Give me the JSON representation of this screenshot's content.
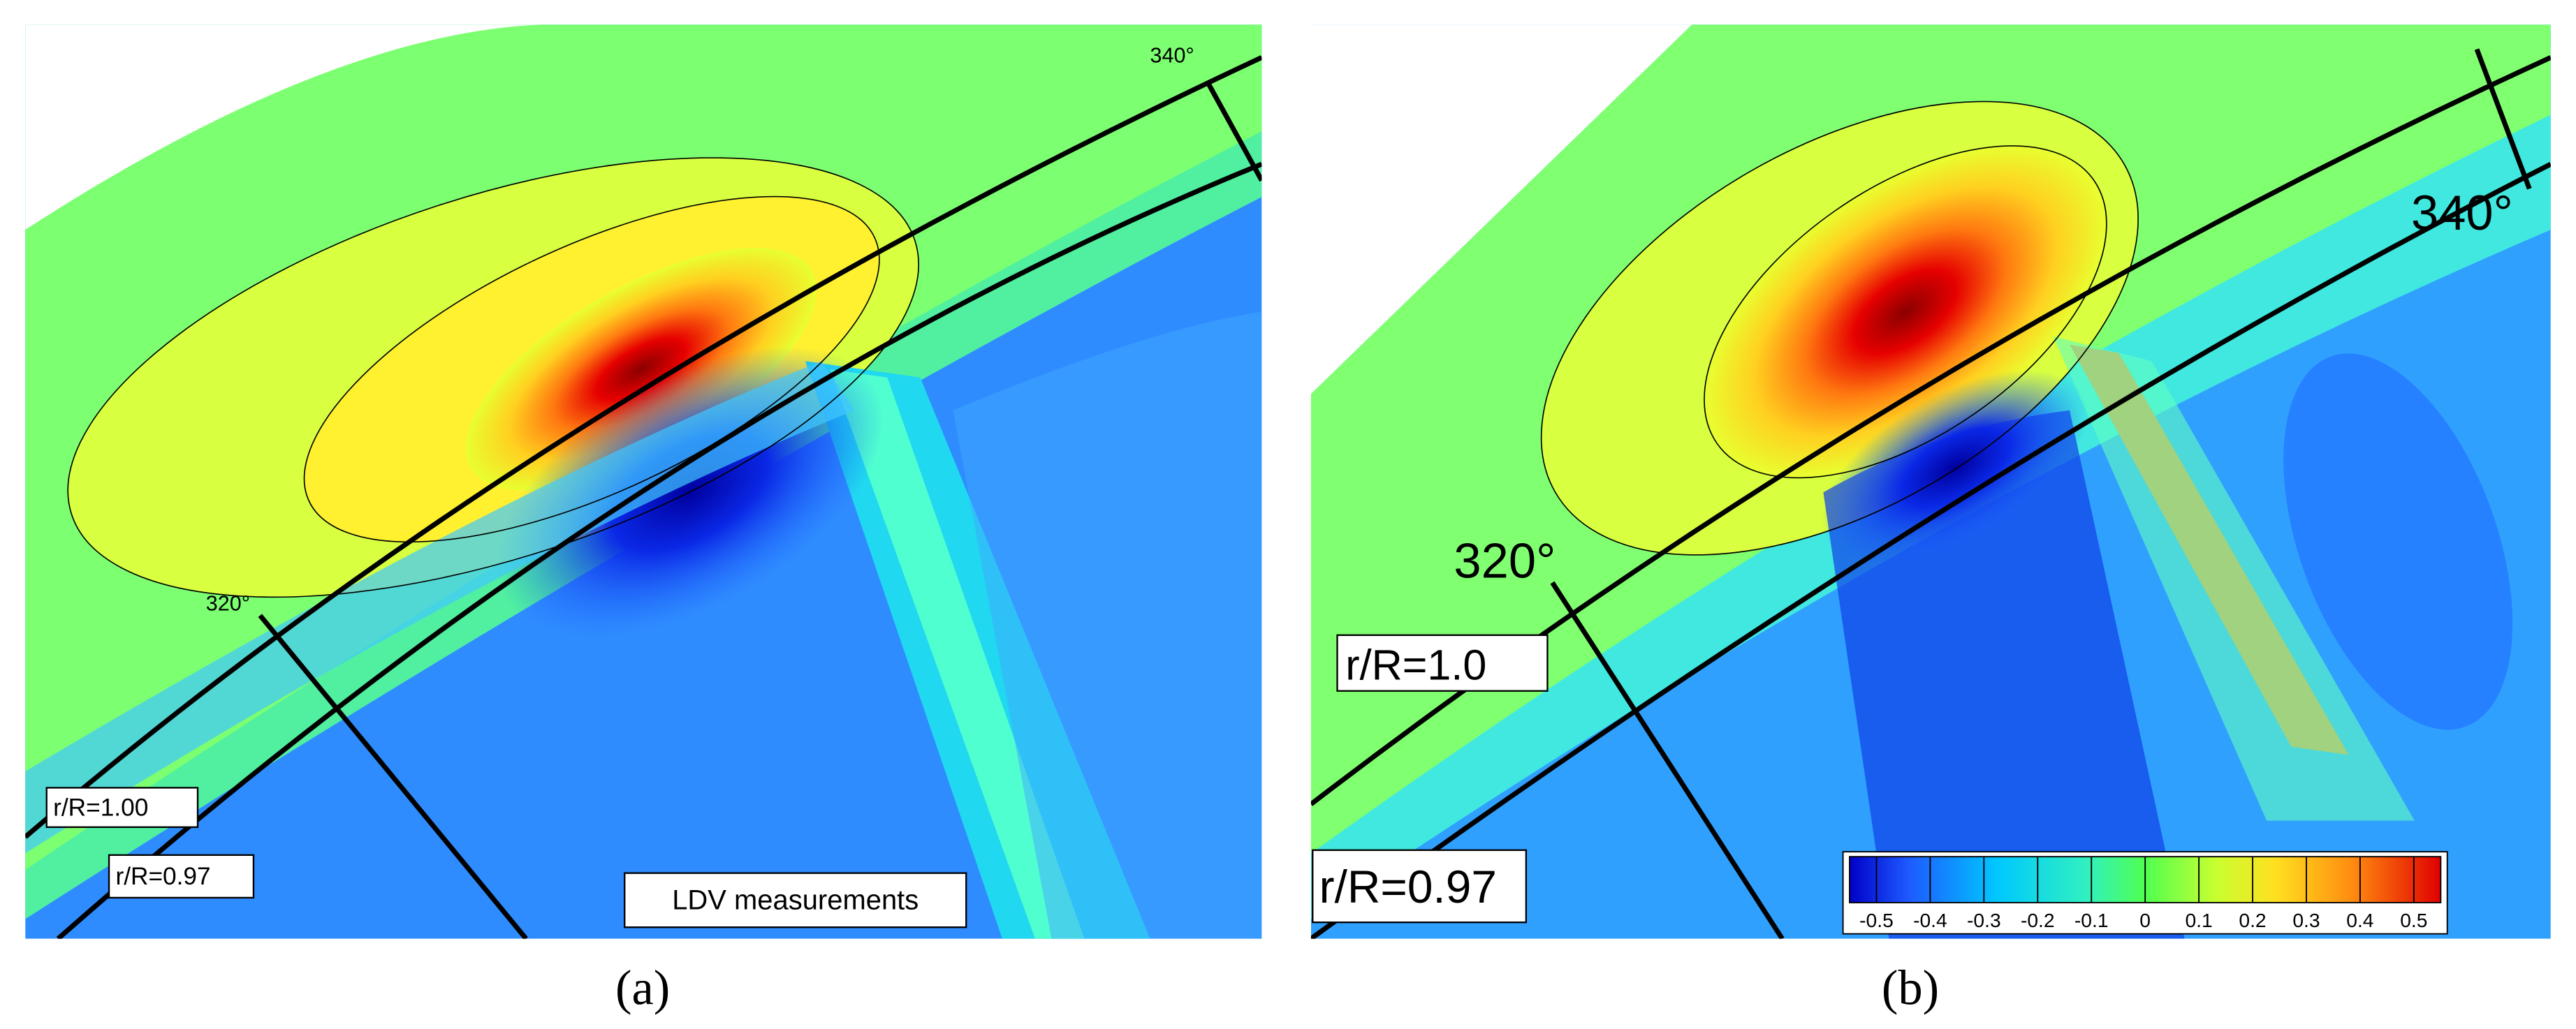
{
  "panels": [
    {
      "caption": "(a)",
      "angle_left": "320°",
      "angle_right": "340°",
      "radius_outer": "r/R=1.00",
      "radius_inner": "r/R=0.97",
      "note": "LDV measurements"
    },
    {
      "caption": "(b)",
      "angle_left": "320°",
      "angle_right": "340°",
      "radius_outer": "r/R=1.0",
      "radius_inner": "r/R=0.97",
      "colorbar": {
        "range": [
          -0.55,
          0.55
        ],
        "ticks": [
          -0.5,
          -0.4,
          -0.3,
          -0.2,
          -0.1,
          0,
          0.1,
          0.2,
          0.3,
          0.4,
          0.5
        ]
      }
    }
  ]
}
